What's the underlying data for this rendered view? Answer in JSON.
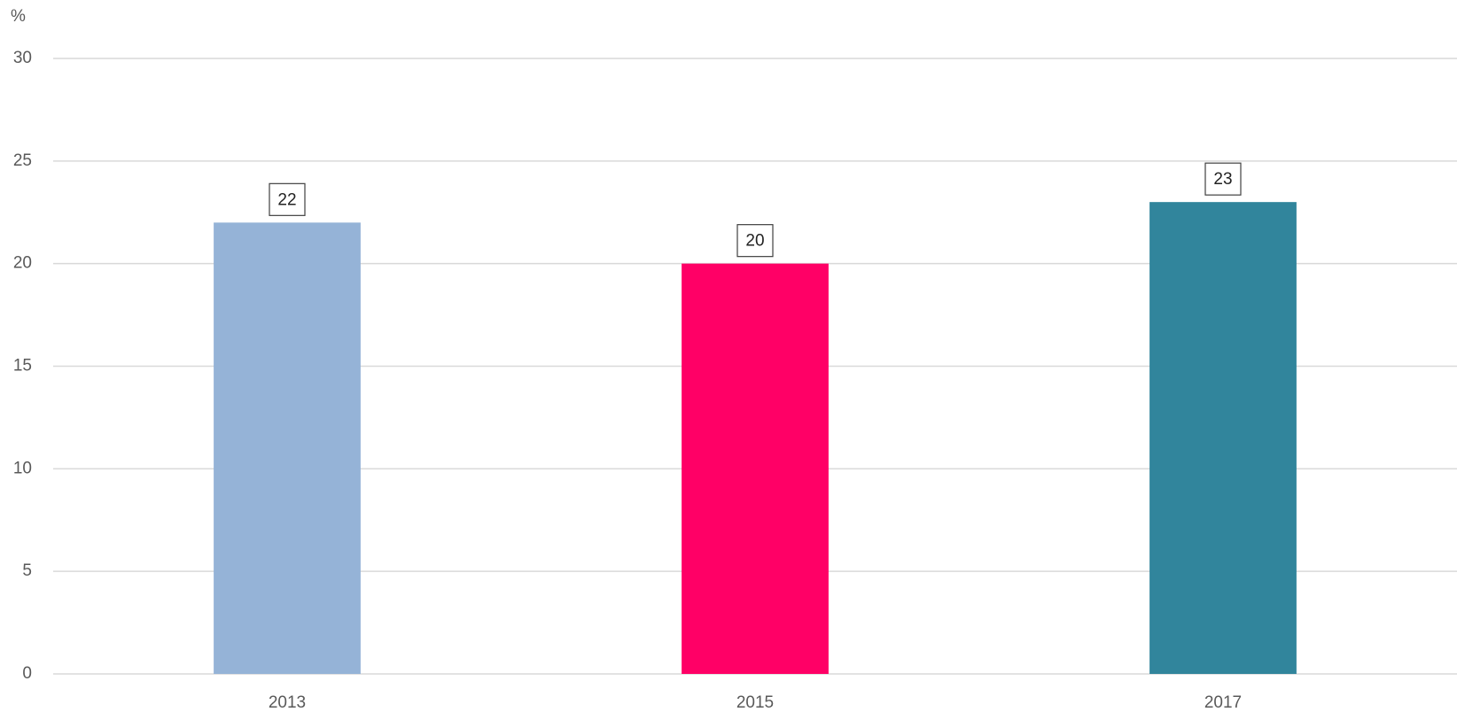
{
  "chart_data": {
    "type": "bar",
    "y_label": "%",
    "categories": [
      "2013",
      "2015",
      "2017"
    ],
    "values": [
      22,
      20,
      23
    ],
    "colors": [
      "#95b3d7",
      "#ff0066",
      "#31859c"
    ],
    "ylim": [
      0,
      30
    ],
    "yticks": [
      0,
      5,
      10,
      15,
      20,
      25,
      30
    ],
    "grid": true
  }
}
